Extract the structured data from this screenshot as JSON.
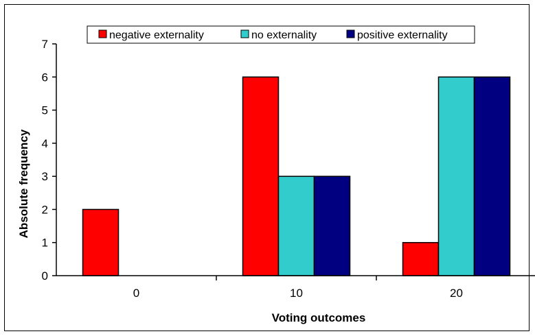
{
  "chart_data": {
    "type": "bar",
    "categories": [
      "0",
      "10",
      "20"
    ],
    "series": [
      {
        "name": "negative externality",
        "color": "#ff0000",
        "values": [
          2,
          6,
          1
        ]
      },
      {
        "name": "no externality",
        "color": "#33cccc",
        "values": [
          0,
          3,
          6
        ]
      },
      {
        "name": "positive externality",
        "color": "#000080",
        "values": [
          0,
          3,
          6
        ]
      }
    ],
    "xlabel": "Voting outcomes",
    "ylabel": "Absolute frequency",
    "ylim": [
      0,
      7
    ],
    "yticks": [
      0,
      1,
      2,
      3,
      4,
      5,
      6,
      7
    ],
    "grid": false,
    "legend_position": "top"
  }
}
